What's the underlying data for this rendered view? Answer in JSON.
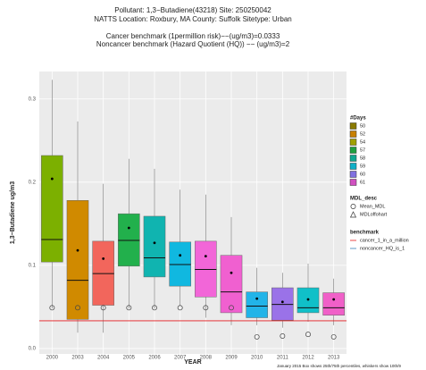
{
  "chart_data": {
    "type": "box",
    "title_lines": [
      "Pollutant: 1,3−Butadiene(43218) Site: 250250042",
      "NATTS Location: Roxbury, MA County: Suffolk Sitetype: Urban",
      "Cancer benchmark (1permillion risk)−−(ug/m3)=0.0333",
      "Noncancer benchmark (Hazard Quotient (HQ)) −− (ug/m3)=2"
    ],
    "y_label": "1,3−Butadiene  ug/m3",
    "x_label": "YEAR",
    "footnote": "January 2015 Box shows 25th/75th percentiles, whiskers show 10th/9",
    "categories": [
      "2000",
      "2003",
      "2004",
      "2005",
      "2006",
      "2007",
      "2008",
      "2009",
      "2010",
      "2011",
      "2012",
      "2013"
    ],
    "colors": [
      "#7cb000",
      "#d08a00",
      "#f2665c",
      "#22b04c",
      "#10b4b0",
      "#10b8e0",
      "#f266d8",
      "#f060d0",
      "#22b4e8",
      "#9a72e8",
      "#10c0c8",
      "#f060c8"
    ],
    "whisker_low": [
      0.048,
      0.019,
      0.019,
      0.048,
      0.048,
      0.051,
      0.037,
      0.028,
      0.028,
      0.025,
      0.032,
      0.028
    ],
    "q1": [
      0.104,
      0.035,
      0.052,
      0.099,
      0.086,
      0.075,
      0.062,
      0.043,
      0.037,
      0.034,
      0.043,
      0.04
    ],
    "median": [
      0.131,
      0.082,
      0.09,
      0.13,
      0.109,
      0.101,
      0.095,
      0.068,
      0.051,
      0.053,
      0.049,
      0.049
    ],
    "q3": [
      0.232,
      0.178,
      0.129,
      0.162,
      0.159,
      0.128,
      0.129,
      0.112,
      0.068,
      0.073,
      0.073,
      0.067
    ],
    "whisker_high": [
      0.323,
      0.273,
      0.198,
      0.228,
      0.216,
      0.191,
      0.185,
      0.158,
      0.097,
      0.091,
      0.102,
      0.084
    ],
    "mean": [
      0.204,
      0.118,
      0.108,
      0.145,
      0.127,
      0.112,
      0.111,
      0.091,
      0.06,
      0.056,
      0.059,
      0.059
    ],
    "mdl": [
      0.049,
      0.049,
      0.049,
      0.049,
      0.049,
      0.049,
      0.049,
      0.049,
      0.014,
      0.015,
      0.017,
      0.014
    ],
    "benchmark_line": {
      "value": 0.0333,
      "color": "#e41a1c"
    },
    "ylim": [
      -0.0065,
      0.333
    ],
    "yticks": [
      {
        "value": 0,
        "label": "0.0"
      },
      0.1,
      0.2,
      0.3
    ],
    "grid": true,
    "legend_days": {
      "title": "#Days",
      "items": [
        {
          "label": "50",
          "color": "#8a7a00"
        },
        {
          "label": "52",
          "color": "#c88000"
        },
        {
          "label": "54",
          "color": "#a0a000"
        },
        {
          "label": "57",
          "color": "#20a040"
        },
        {
          "label": "58",
          "color": "#10a890"
        },
        {
          "label": "59",
          "color": "#10b0c8"
        },
        {
          "label": "60",
          "color": "#8070e0"
        },
        {
          "label": "61",
          "color": "#d050c0"
        }
      ]
    },
    "legend_mdl": {
      "title": "MDL_desc",
      "items": [
        "Mean_MDL",
        "MDLoffohart"
      ]
    },
    "legend_benchmark": {
      "title": "benchmark",
      "items": [
        {
          "label": "cancer_1_in_a_million",
          "color": "#e41a1c"
        },
        {
          "label": "noncancer_HQ_is_1",
          "color": "#377eb8"
        }
      ]
    }
  }
}
